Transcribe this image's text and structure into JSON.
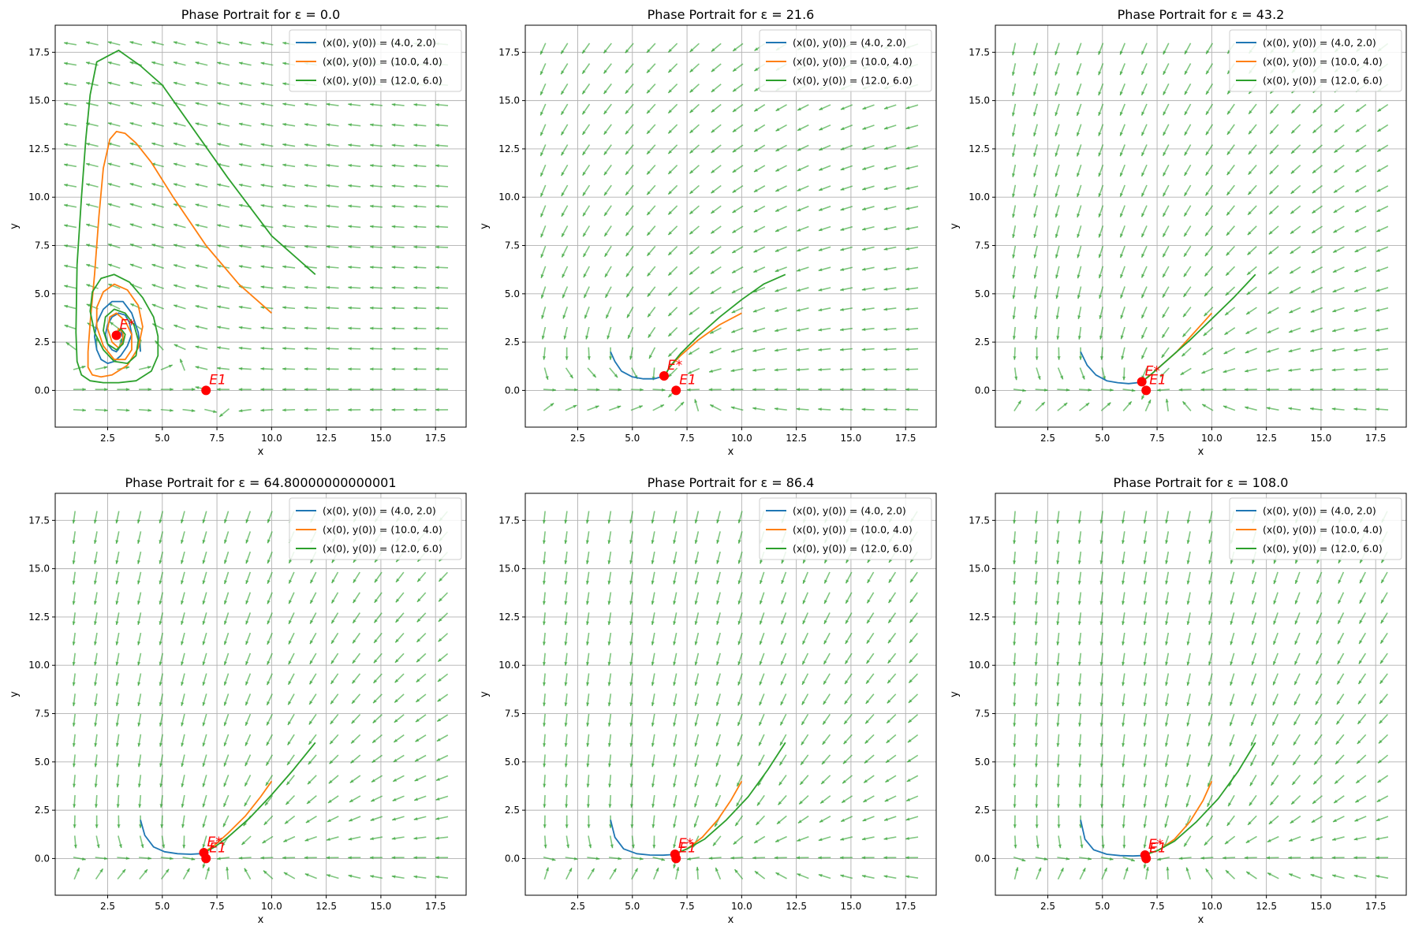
{
  "figure": {
    "rows": 2,
    "cols": 3
  },
  "colors": {
    "series": [
      "#1f77b4",
      "#ff7f0e",
      "#2ca02c"
    ],
    "arrows": "#2ca02c",
    "equilibrium": "#ff0000",
    "grid": "#b0b0b0"
  },
  "chart_data": [
    {
      "type": "line",
      "title": "Phase Portrait for ε = 0.0",
      "epsilon": 0.0,
      "xlabel": "x",
      "ylabel": "y",
      "xlim": [
        0.1,
        18.9
      ],
      "ylim": [
        -1.9,
        18.9
      ],
      "xticks": [
        "2.5",
        "5.0",
        "7.5",
        "10.0",
        "12.5",
        "15.0",
        "17.5"
      ],
      "yticks": [
        "0.0",
        "2.5",
        "5.0",
        "7.5",
        "10.0",
        "12.5",
        "15.0",
        "17.5"
      ],
      "grid": true,
      "legend_position": "top-right",
      "series": [
        {
          "name": "(x(0), y(0)) = (4.0, 2.0)",
          "x": [
            4.0,
            3.9,
            3.6,
            3.2,
            2.7,
            2.3,
            2.0,
            1.9,
            2.0,
            2.2,
            2.5,
            2.8,
            3.1,
            3.4,
            3.6,
            3.5,
            3.3,
            3.0,
            2.7,
            2.5,
            2.4,
            2.5,
            2.7,
            2.9,
            3.1,
            3.2,
            3.1,
            3.0,
            2.9
          ],
          "y": [
            2.0,
            3.0,
            4.0,
            4.6,
            4.6,
            4.2,
            3.5,
            2.8,
            2.1,
            1.6,
            1.4,
            1.5,
            1.8,
            2.3,
            2.9,
            3.5,
            3.9,
            4.0,
            3.8,
            3.4,
            2.9,
            2.4,
            2.1,
            2.0,
            2.3,
            2.7,
            3.1,
            3.2,
            2.9
          ]
        },
        {
          "name": "(x(0), y(0)) = (10.0, 4.0)",
          "x": [
            10.0,
            8.5,
            7.0,
            5.5,
            4.5,
            3.8,
            3.3,
            2.9,
            2.6,
            2.3,
            2.1,
            1.9,
            1.7,
            1.6,
            1.6,
            1.8,
            2.2,
            2.7,
            3.4,
            3.9,
            4.1,
            3.9,
            3.4,
            2.8,
            2.3,
            2.0,
            2.0,
            2.3,
            2.8,
            3.3,
            3.6,
            3.6,
            3.3,
            2.9,
            2.6,
            2.5,
            2.7,
            3.0,
            3.2,
            3.2,
            3.0,
            2.9
          ],
          "y": [
            4.0,
            5.5,
            7.5,
            10.0,
            11.8,
            12.8,
            13.3,
            13.4,
            13.0,
            11.5,
            9.0,
            6.0,
            3.5,
            2.0,
            1.2,
            0.8,
            0.7,
            0.8,
            1.3,
            2.2,
            3.3,
            4.4,
            5.2,
            5.5,
            5.1,
            4.3,
            3.3,
            2.3,
            1.6,
            1.6,
            2.1,
            2.9,
            3.6,
            4.0,
            3.8,
            3.2,
            2.5,
            2.2,
            2.5,
            3.0,
            3.2,
            2.9
          ]
        },
        {
          "name": "(x(0), y(0)) = (12.0, 6.0)",
          "x": [
            12.0,
            10.0,
            8.0,
            6.0,
            5.0,
            4.0,
            3.5,
            3.0,
            2.5,
            2.0,
            1.7,
            1.5,
            1.3,
            1.1,
            1.05,
            1.1,
            1.3,
            1.7,
            2.3,
            3.0,
            3.8,
            4.5,
            4.8,
            4.8,
            4.6,
            4.1,
            3.5,
            2.8,
            2.2,
            1.8,
            1.7,
            1.9,
            2.3,
            2.8,
            3.4,
            3.8,
            3.9,
            3.7,
            3.3,
            2.8,
            2.4,
            2.3,
            2.5,
            2.9,
            3.2,
            3.3,
            3.1,
            2.9
          ],
          "y": [
            6.0,
            8.0,
            11.0,
            14.2,
            15.8,
            16.8,
            17.2,
            17.6,
            17.3,
            17.0,
            15.3,
            13.0,
            10.0,
            6.5,
            3.0,
            1.5,
            0.8,
            0.5,
            0.4,
            0.4,
            0.5,
            1.0,
            1.8,
            2.8,
            3.8,
            4.8,
            5.6,
            6.0,
            5.8,
            5.1,
            4.1,
            3.0,
            2.1,
            1.5,
            1.4,
            1.8,
            2.6,
            3.4,
            4.0,
            4.2,
            3.8,
            3.1,
            2.4,
            2.1,
            2.4,
            2.9,
            3.2,
            2.9
          ]
        }
      ],
      "equilibria": [
        {
          "label": "E*",
          "x": 2.9,
          "y": 2.85
        },
        {
          "label": "E1",
          "x": 7.0,
          "y": 0.0
        }
      ]
    },
    {
      "type": "line",
      "title": "Phase Portrait for ε = 21.6",
      "epsilon": 21.6,
      "xlabel": "x",
      "ylabel": "y",
      "xlim": [
        0.1,
        18.9
      ],
      "ylim": [
        -1.9,
        18.9
      ],
      "xticks": [
        "2.5",
        "5.0",
        "7.5",
        "10.0",
        "12.5",
        "15.0",
        "17.5"
      ],
      "yticks": [
        "0.0",
        "2.5",
        "5.0",
        "7.5",
        "10.0",
        "12.5",
        "15.0",
        "17.5"
      ],
      "grid": true,
      "legend_position": "top-right",
      "series": [
        {
          "name": "(x(0), y(0)) = (4.0, 2.0)",
          "x": [
            4.0,
            4.2,
            4.5,
            5.0,
            5.5,
            6.0,
            6.3,
            6.5
          ],
          "y": [
            2.0,
            1.5,
            1.0,
            0.7,
            0.6,
            0.6,
            0.7,
            0.8
          ]
        },
        {
          "name": "(x(0), y(0)) = (10.0, 4.0)",
          "x": [
            10.0,
            9.0,
            8.0,
            7.2,
            6.7,
            6.5
          ],
          "y": [
            4.0,
            3.4,
            2.6,
            1.8,
            1.2,
            0.8
          ]
        },
        {
          "name": "(x(0), y(0)) = (12.0, 6.0)",
          "x": [
            12.0,
            11.0,
            10.0,
            9.0,
            8.0,
            7.2,
            6.7,
            6.5
          ],
          "y": [
            6.0,
            5.5,
            4.7,
            3.8,
            2.8,
            1.9,
            1.2,
            0.8
          ]
        }
      ],
      "equilibria": [
        {
          "label": "E*",
          "x": 6.45,
          "y": 0.75
        },
        {
          "label": "E1",
          "x": 7.0,
          "y": 0.0
        }
      ]
    },
    {
      "type": "line",
      "title": "Phase Portrait for ε = 43.2",
      "epsilon": 43.2,
      "xlabel": "x",
      "ylabel": "y",
      "xlim": [
        0.1,
        18.9
      ],
      "ylim": [
        -1.9,
        18.9
      ],
      "xticks": [
        "2.5",
        "5.0",
        "7.5",
        "10.0",
        "12.5",
        "15.0",
        "17.5"
      ],
      "yticks": [
        "0.0",
        "2.5",
        "5.0",
        "7.5",
        "10.0",
        "12.5",
        "15.0",
        "17.5"
      ],
      "grid": true,
      "legend_position": "top-right",
      "series": [
        {
          "name": "(x(0), y(0)) = (4.0, 2.0)",
          "x": [
            4.0,
            4.3,
            4.7,
            5.2,
            5.7,
            6.2,
            6.6,
            6.8
          ],
          "y": [
            2.0,
            1.3,
            0.8,
            0.5,
            0.4,
            0.35,
            0.4,
            0.45
          ]
        },
        {
          "name": "(x(0), y(0)) = (10.0, 4.0)",
          "x": [
            10.0,
            9.2,
            8.4,
            7.6,
            7.1,
            6.8
          ],
          "y": [
            4.0,
            3.0,
            2.0,
            1.2,
            0.7,
            0.45
          ]
        },
        {
          "name": "(x(0), y(0)) = (12.0, 6.0)",
          "x": [
            12.0,
            11.0,
            10.0,
            9.0,
            8.0,
            7.3,
            6.8
          ],
          "y": [
            6.0,
            4.8,
            3.7,
            2.6,
            1.6,
            0.9,
            0.45
          ]
        }
      ],
      "equilibria": [
        {
          "label": "E*",
          "x": 6.8,
          "y": 0.45
        },
        {
          "label": "E1",
          "x": 7.0,
          "y": 0.0
        }
      ]
    },
    {
      "type": "line",
      "title": "Phase Portrait for ε = 64.80000000000001",
      "epsilon": 64.80000000000001,
      "xlabel": "x",
      "ylabel": "y",
      "xlim": [
        0.1,
        18.9
      ],
      "ylim": [
        -1.9,
        18.9
      ],
      "xticks": [
        "2.5",
        "5.0",
        "7.5",
        "10.0",
        "12.5",
        "15.0",
        "17.5"
      ],
      "yticks": [
        "0.0",
        "2.5",
        "5.0",
        "7.5",
        "10.0",
        "12.5",
        "15.0",
        "17.5"
      ],
      "grid": true,
      "legend_position": "top-right",
      "series": [
        {
          "name": "(x(0), y(0)) = (4.0, 2.0)",
          "x": [
            4.0,
            4.2,
            4.6,
            5.1,
            5.7,
            6.3,
            6.7,
            6.9
          ],
          "y": [
            2.0,
            1.2,
            0.6,
            0.35,
            0.25,
            0.22,
            0.25,
            0.3
          ]
        },
        {
          "name": "(x(0), y(0)) = (10.0, 4.0)",
          "x": [
            10.0,
            9.5,
            8.8,
            8.0,
            7.4,
            7.0,
            6.9
          ],
          "y": [
            4.0,
            3.2,
            2.2,
            1.3,
            0.7,
            0.4,
            0.3
          ]
        },
        {
          "name": "(x(0), y(0)) = (12.0, 6.0)",
          "x": [
            12.0,
            11.0,
            10.0,
            9.0,
            8.0,
            7.4,
            6.9
          ],
          "y": [
            6.0,
            4.6,
            3.3,
            2.1,
            1.1,
            0.6,
            0.3
          ]
        }
      ],
      "equilibria": [
        {
          "label": "E*",
          "x": 6.9,
          "y": 0.3
        },
        {
          "label": "E1",
          "x": 7.0,
          "y": 0.0
        }
      ]
    },
    {
      "type": "line",
      "title": "Phase Portrait for ε = 86.4",
      "epsilon": 86.4,
      "xlabel": "x",
      "ylabel": "y",
      "xlim": [
        0.1,
        18.9
      ],
      "ylim": [
        -1.9,
        18.9
      ],
      "xticks": [
        "2.5",
        "5.0",
        "7.5",
        "10.0",
        "12.5",
        "15.0",
        "17.5"
      ],
      "yticks": [
        "0.0",
        "2.5",
        "5.0",
        "7.5",
        "10.0",
        "12.5",
        "15.0",
        "17.5"
      ],
      "grid": true,
      "legend_position": "top-right",
      "series": [
        {
          "name": "(x(0), y(0)) = (4.0, 2.0)",
          "x": [
            4.0,
            4.2,
            4.6,
            5.2,
            5.8,
            6.4,
            6.8,
            6.95
          ],
          "y": [
            2.0,
            1.1,
            0.5,
            0.25,
            0.18,
            0.17,
            0.2,
            0.25
          ]
        },
        {
          "name": "(x(0), y(0)) = (10.0, 4.0)",
          "x": [
            10.0,
            9.5,
            8.9,
            8.2,
            7.5,
            7.1,
            6.95
          ],
          "y": [
            4.0,
            3.0,
            2.0,
            1.1,
            0.5,
            0.3,
            0.25
          ]
        },
        {
          "name": "(x(0), y(0)) = (12.0, 6.0)",
          "x": [
            12.0,
            11.2,
            10.3,
            9.3,
            8.3,
            7.5,
            6.95
          ],
          "y": [
            6.0,
            4.6,
            3.2,
            2.0,
            1.0,
            0.5,
            0.25
          ]
        }
      ],
      "equilibria": [
        {
          "label": "E*",
          "x": 6.95,
          "y": 0.22
        },
        {
          "label": "E1",
          "x": 7.0,
          "y": 0.0
        }
      ]
    },
    {
      "type": "line",
      "title": "Phase Portrait for ε = 108.0",
      "epsilon": 108.0,
      "xlabel": "x",
      "ylabel": "y",
      "xlim": [
        0.1,
        18.9
      ],
      "ylim": [
        -1.9,
        18.9
      ],
      "xticks": [
        "2.5",
        "5.0",
        "7.5",
        "10.0",
        "12.5",
        "15.0",
        "17.5"
      ],
      "yticks": [
        "0.0",
        "2.5",
        "5.0",
        "7.5",
        "10.0",
        "12.5",
        "15.0",
        "17.5"
      ],
      "grid": true,
      "legend_position": "top-right",
      "series": [
        {
          "name": "(x(0), y(0)) = (4.0, 2.0)",
          "x": [
            4.0,
            4.2,
            4.6,
            5.2,
            5.8,
            6.4,
            6.8,
            6.95
          ],
          "y": [
            2.0,
            1.0,
            0.45,
            0.22,
            0.15,
            0.13,
            0.15,
            0.2
          ]
        },
        {
          "name": "(x(0), y(0)) = (10.0, 4.0)",
          "x": [
            10.0,
            9.6,
            9.0,
            8.3,
            7.6,
            7.1,
            6.95
          ],
          "y": [
            4.0,
            3.0,
            1.9,
            1.0,
            0.45,
            0.25,
            0.2
          ]
        },
        {
          "name": "(x(0), y(0)) = (12.0, 6.0)",
          "x": [
            12.0,
            11.2,
            10.3,
            9.3,
            8.3,
            7.5,
            6.95
          ],
          "y": [
            6.0,
            4.5,
            3.1,
            1.9,
            0.9,
            0.4,
            0.2
          ]
        }
      ],
      "equilibria": [
        {
          "label": "E*",
          "x": 6.95,
          "y": 0.18
        },
        {
          "label": "E1",
          "x": 7.0,
          "y": 0.0
        }
      ]
    }
  ]
}
